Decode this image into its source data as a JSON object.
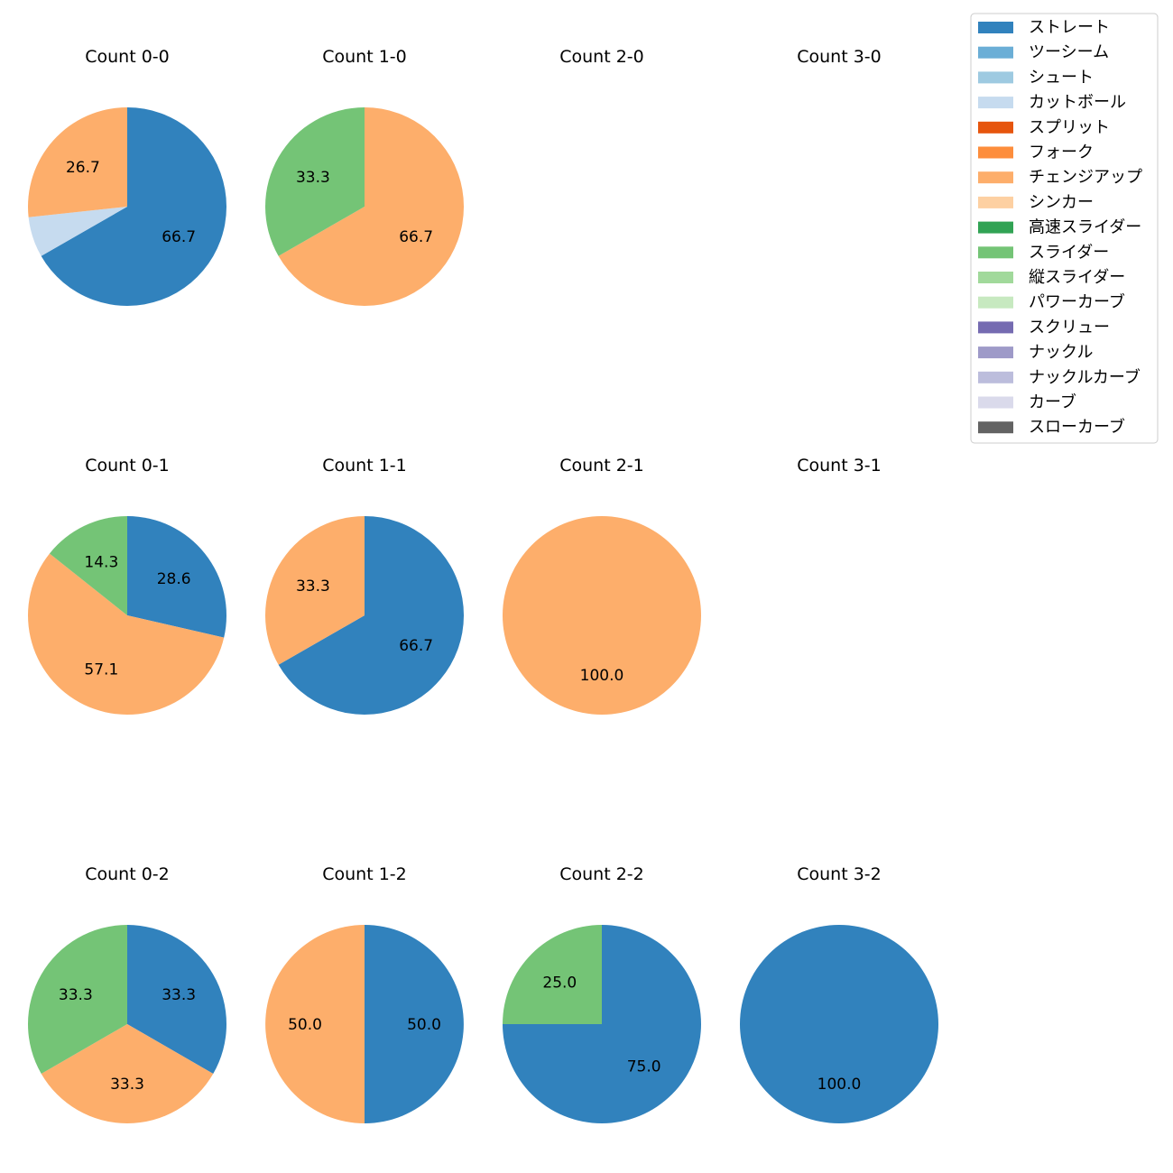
{
  "chart_data": {
    "type": "pie",
    "legend": {
      "placement": "top-right",
      "entries": [
        {
          "name": "ストレート",
          "color": "#3182bd"
        },
        {
          "name": "ツーシーム",
          "color": "#6baed6"
        },
        {
          "name": "シュート",
          "color": "#9ecae1"
        },
        {
          "name": "カットボール",
          "color": "#c6dbef"
        },
        {
          "name": "スプリット",
          "color": "#e6550d"
        },
        {
          "name": "フォーク",
          "color": "#fd8d3c"
        },
        {
          "name": "チェンジアップ",
          "color": "#fdae6b"
        },
        {
          "name": "シンカー",
          "color": "#fdd0a2"
        },
        {
          "name": "高速スライダー",
          "color": "#31a354"
        },
        {
          "name": "スライダー",
          "color": "#74c476"
        },
        {
          "name": "縦スライダー",
          "color": "#a1d99b"
        },
        {
          "name": "パワーカーブ",
          "color": "#c7e9c0"
        },
        {
          "name": "スクリュー",
          "color": "#756bb1"
        },
        {
          "name": "ナックル",
          "color": "#9e9ac8"
        },
        {
          "name": "ナックルカーブ",
          "color": "#bcbddc"
        },
        {
          "name": "カーブ",
          "color": "#dadaeb"
        },
        {
          "name": "スローカーブ",
          "color": "#636363"
        }
      ]
    },
    "panels": [
      {
        "title": "Count 0-0",
        "row": 0,
        "col": 0,
        "slices": [
          {
            "pitch": "ストレート",
            "value": 66.7,
            "label": "66.7"
          },
          {
            "pitch": "カットボール",
            "value": 6.6,
            "label": ""
          },
          {
            "pitch": "チェンジアップ",
            "value": 26.7,
            "label": "26.7"
          }
        ]
      },
      {
        "title": "Count 1-0",
        "row": 0,
        "col": 1,
        "slices": [
          {
            "pitch": "チェンジアップ",
            "value": 66.7,
            "label": "66.7"
          },
          {
            "pitch": "スライダー",
            "value": 33.3,
            "label": "33.3"
          }
        ]
      },
      {
        "title": "Count 2-0",
        "row": 0,
        "col": 2,
        "slices": []
      },
      {
        "title": "Count 3-0",
        "row": 0,
        "col": 3,
        "slices": []
      },
      {
        "title": "Count 0-1",
        "row": 1,
        "col": 0,
        "slices": [
          {
            "pitch": "ストレート",
            "value": 28.6,
            "label": "28.6"
          },
          {
            "pitch": "チェンジアップ",
            "value": 57.1,
            "label": "57.1"
          },
          {
            "pitch": "スライダー",
            "value": 14.3,
            "label": "14.3"
          }
        ]
      },
      {
        "title": "Count 1-1",
        "row": 1,
        "col": 1,
        "slices": [
          {
            "pitch": "ストレート",
            "value": 66.7,
            "label": "66.7"
          },
          {
            "pitch": "チェンジアップ",
            "value": 33.3,
            "label": "33.3"
          }
        ]
      },
      {
        "title": "Count 2-1",
        "row": 1,
        "col": 2,
        "slices": [
          {
            "pitch": "チェンジアップ",
            "value": 100.0,
            "label": "100.0"
          }
        ]
      },
      {
        "title": "Count 3-1",
        "row": 1,
        "col": 3,
        "slices": []
      },
      {
        "title": "Count 0-2",
        "row": 2,
        "col": 0,
        "slices": [
          {
            "pitch": "ストレート",
            "value": 33.3,
            "label": "33.3"
          },
          {
            "pitch": "チェンジアップ",
            "value": 33.3,
            "label": "33.3"
          },
          {
            "pitch": "スライダー",
            "value": 33.3,
            "label": "33.3"
          }
        ]
      },
      {
        "title": "Count 1-2",
        "row": 2,
        "col": 1,
        "slices": [
          {
            "pitch": "ストレート",
            "value": 50.0,
            "label": "50.0"
          },
          {
            "pitch": "チェンジアップ",
            "value": 50.0,
            "label": "50.0"
          }
        ]
      },
      {
        "title": "Count 2-2",
        "row": 2,
        "col": 2,
        "slices": [
          {
            "pitch": "ストレート",
            "value": 75.0,
            "label": "75.0"
          },
          {
            "pitch": "スライダー",
            "value": 25.0,
            "label": "25.0"
          }
        ]
      },
      {
        "title": "Count 3-2",
        "row": 2,
        "col": 3,
        "slices": [
          {
            "pitch": "ストレート",
            "value": 100.0,
            "label": "100.0"
          }
        ]
      }
    ]
  }
}
